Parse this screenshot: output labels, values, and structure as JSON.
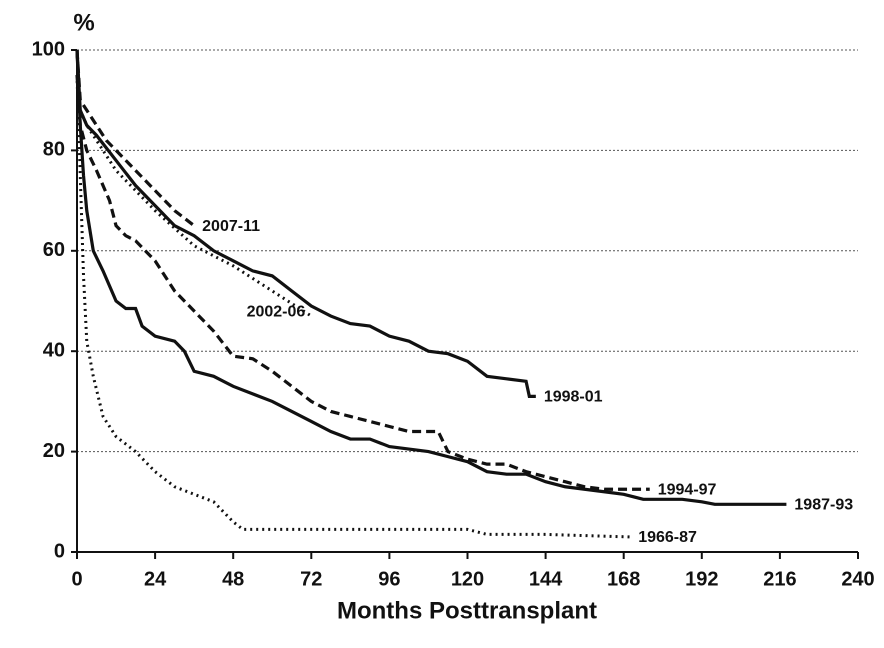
{
  "chart_data": {
    "type": "line",
    "y_label": "%",
    "x_label": "Months Posttransplant",
    "xlim": [
      0,
      240
    ],
    "xticks": [
      0,
      24,
      48,
      72,
      96,
      120,
      144,
      168,
      192,
      216,
      240
    ],
    "ylim": [
      0,
      100
    ],
    "yticks": [
      0,
      20,
      40,
      60,
      80,
      100
    ],
    "grid": true,
    "series": [
      {
        "name": "2007-11",
        "color": "#111111",
        "style": "dashed",
        "x": [
          0,
          1,
          3,
          6,
          9,
          12,
          18,
          24,
          30,
          36
        ],
        "values": [
          100,
          90,
          88,
          85,
          82,
          80,
          76,
          72,
          68,
          65
        ]
      },
      {
        "name": "2002-06",
        "color": "#111111",
        "style": "dotted",
        "x": [
          0,
          1,
          3,
          6,
          12,
          18,
          24,
          36,
          48,
          60,
          72
        ],
        "values": [
          100,
          88,
          85,
          82,
          76,
          72,
          68,
          61,
          57,
          52,
          47
        ]
      },
      {
        "name": "1998-01",
        "color": "#111111",
        "style": "solid",
        "x": [
          0,
          1,
          3,
          6,
          12,
          18,
          24,
          30,
          36,
          42,
          48,
          54,
          60,
          66,
          72,
          78,
          84,
          90,
          96,
          102,
          108,
          114,
          120,
          126,
          132,
          138,
          139,
          141
        ],
        "values": [
          100,
          88,
          85,
          83,
          78,
          73,
          69,
          65,
          63,
          60,
          58,
          56,
          55,
          52,
          49,
          47,
          45.5,
          45,
          43,
          42,
          40,
          39.5,
          38,
          35,
          34.5,
          34,
          31,
          31
        ]
      },
      {
        "name": "1994-97",
        "color": "#111111",
        "style": "dashed",
        "x": [
          0,
          1,
          3,
          6,
          10,
          12,
          15,
          18,
          24,
          30,
          36,
          42,
          48,
          54,
          60,
          66,
          72,
          78,
          84,
          90,
          96,
          102,
          108,
          111,
          114,
          120,
          126,
          132,
          138,
          144,
          150,
          156,
          162,
          168,
          176
        ],
        "values": [
          95,
          85,
          80,
          76,
          70,
          65,
          63,
          62,
          58,
          52,
          48,
          44,
          39,
          38.5,
          36,
          33,
          30,
          28,
          27,
          26,
          25,
          24,
          24,
          24,
          20,
          18.5,
          17.5,
          17.5,
          16,
          15,
          14,
          13,
          12.5,
          12.5,
          12.5
        ]
      },
      {
        "name": "1987-93",
        "color": "#111111",
        "style": "solid",
        "x": [
          0,
          1,
          2,
          3,
          5,
          8,
          12,
          15,
          18,
          20,
          24,
          30,
          33,
          36,
          42,
          48,
          54,
          60,
          66,
          72,
          78,
          84,
          90,
          96,
          102,
          108,
          114,
          120,
          126,
          132,
          138,
          144,
          150,
          156,
          162,
          168,
          174,
          180,
          186,
          192,
          196,
          204,
          218
        ],
        "values": [
          100,
          85,
          75,
          68,
          60,
          56,
          50,
          48.5,
          48.5,
          45,
          43,
          42,
          40,
          36,
          35,
          33,
          31.5,
          30,
          28,
          26,
          24,
          22.5,
          22.5,
          21,
          20.5,
          20,
          19,
          18,
          16,
          15.5,
          15.5,
          14,
          13,
          12.5,
          12,
          11.5,
          10.5,
          10.5,
          10.5,
          10,
          9.5,
          9.5,
          9.5
        ]
      },
      {
        "name": "1966-87",
        "color": "#111111",
        "style": "dotted",
        "x": [
          0,
          1,
          2,
          3,
          5,
          8,
          12,
          18,
          24,
          30,
          36,
          42,
          48,
          51,
          60,
          72,
          84,
          96,
          108,
          120,
          126,
          144,
          170
        ],
        "values": [
          95,
          75,
          55,
          42,
          35,
          27,
          23,
          20,
          16,
          13,
          11.5,
          10,
          6,
          4.5,
          4.5,
          4.5,
          4.5,
          4.5,
          4.5,
          4.5,
          3.5,
          3.5,
          3
        ]
      }
    ]
  }
}
